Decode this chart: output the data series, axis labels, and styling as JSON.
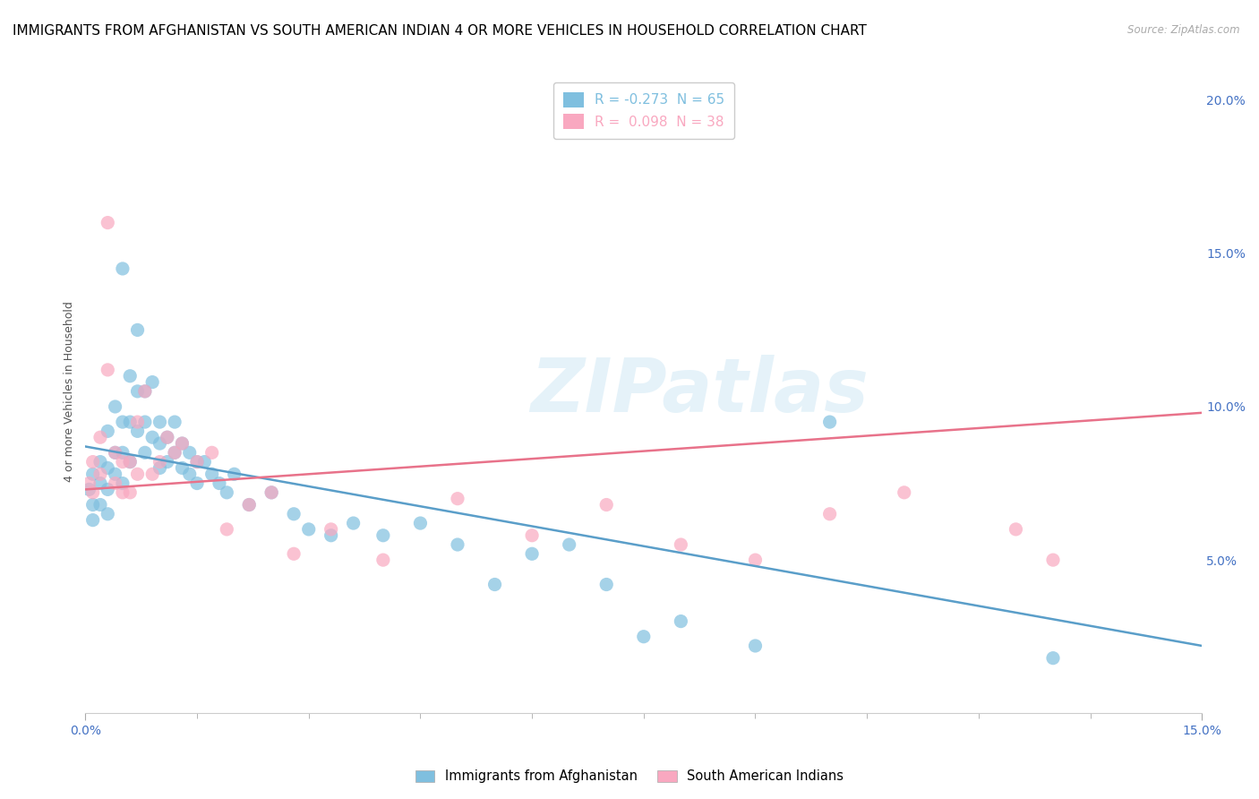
{
  "title": "IMMIGRANTS FROM AFGHANISTAN VS SOUTH AMERICAN INDIAN 4 OR MORE VEHICLES IN HOUSEHOLD CORRELATION CHART",
  "source": "Source: ZipAtlas.com",
  "ylabel": "4 or more Vehicles in Household",
  "xlim": [
    0.0,
    0.15
  ],
  "ylim": [
    0.0,
    0.21
  ],
  "x_tick_major": [
    0.0,
    0.15
  ],
  "x_tick_major_labels": [
    "0.0%",
    "15.0%"
  ],
  "x_tick_minor": [
    0.015,
    0.03,
    0.045,
    0.06,
    0.075,
    0.09,
    0.105,
    0.12,
    0.135
  ],
  "y_ticks_right": [
    0.05,
    0.1,
    0.15,
    0.2
  ],
  "y_tick_labels_right": [
    "5.0%",
    "10.0%",
    "15.0%",
    "20.0%"
  ],
  "legend_blue_R": "-0.273",
  "legend_blue_N": "65",
  "legend_pink_R": "0.098",
  "legend_pink_N": "38",
  "color_blue": "#7fbfdf",
  "color_pink": "#f9a8c0",
  "watermark": "ZIPatlas",
  "blue_scatter_x": [
    0.0005,
    0.001,
    0.001,
    0.001,
    0.002,
    0.002,
    0.002,
    0.003,
    0.003,
    0.003,
    0.003,
    0.004,
    0.004,
    0.004,
    0.005,
    0.005,
    0.005,
    0.005,
    0.006,
    0.006,
    0.006,
    0.007,
    0.007,
    0.007,
    0.008,
    0.008,
    0.008,
    0.009,
    0.009,
    0.01,
    0.01,
    0.01,
    0.011,
    0.011,
    0.012,
    0.012,
    0.013,
    0.013,
    0.014,
    0.014,
    0.015,
    0.015,
    0.016,
    0.017,
    0.018,
    0.019,
    0.02,
    0.022,
    0.025,
    0.028,
    0.03,
    0.033,
    0.036,
    0.04,
    0.045,
    0.05,
    0.055,
    0.06,
    0.065,
    0.07,
    0.075,
    0.08,
    0.09,
    0.1,
    0.13
  ],
  "blue_scatter_y": [
    0.073,
    0.078,
    0.068,
    0.063,
    0.082,
    0.075,
    0.068,
    0.092,
    0.08,
    0.073,
    0.065,
    0.1,
    0.085,
    0.078,
    0.145,
    0.095,
    0.085,
    0.075,
    0.11,
    0.095,
    0.082,
    0.125,
    0.105,
    0.092,
    0.105,
    0.095,
    0.085,
    0.108,
    0.09,
    0.095,
    0.088,
    0.08,
    0.09,
    0.082,
    0.095,
    0.085,
    0.088,
    0.08,
    0.085,
    0.078,
    0.082,
    0.075,
    0.082,
    0.078,
    0.075,
    0.072,
    0.078,
    0.068,
    0.072,
    0.065,
    0.06,
    0.058,
    0.062,
    0.058,
    0.062,
    0.055,
    0.042,
    0.052,
    0.055,
    0.042,
    0.025,
    0.03,
    0.022,
    0.095,
    0.018
  ],
  "pink_scatter_x": [
    0.0005,
    0.001,
    0.001,
    0.002,
    0.002,
    0.003,
    0.003,
    0.004,
    0.004,
    0.005,
    0.005,
    0.006,
    0.006,
    0.007,
    0.007,
    0.008,
    0.009,
    0.01,
    0.011,
    0.012,
    0.013,
    0.015,
    0.017,
    0.019,
    0.022,
    0.025,
    0.028,
    0.033,
    0.04,
    0.05,
    0.06,
    0.07,
    0.08,
    0.09,
    0.1,
    0.11,
    0.125,
    0.13
  ],
  "pink_scatter_y": [
    0.075,
    0.082,
    0.072,
    0.09,
    0.078,
    0.16,
    0.112,
    0.085,
    0.075,
    0.082,
    0.072,
    0.082,
    0.072,
    0.095,
    0.078,
    0.105,
    0.078,
    0.082,
    0.09,
    0.085,
    0.088,
    0.082,
    0.085,
    0.06,
    0.068,
    0.072,
    0.052,
    0.06,
    0.05,
    0.07,
    0.058,
    0.068,
    0.055,
    0.05,
    0.065,
    0.072,
    0.06,
    0.05
  ],
  "blue_line_x": [
    0.0,
    0.15
  ],
  "blue_line_y": [
    0.087,
    0.022
  ],
  "pink_line_x": [
    0.0,
    0.15
  ],
  "pink_line_y": [
    0.073,
    0.098
  ],
  "title_fontsize": 11,
  "axis_label_fontsize": 9,
  "tick_fontsize": 10
}
